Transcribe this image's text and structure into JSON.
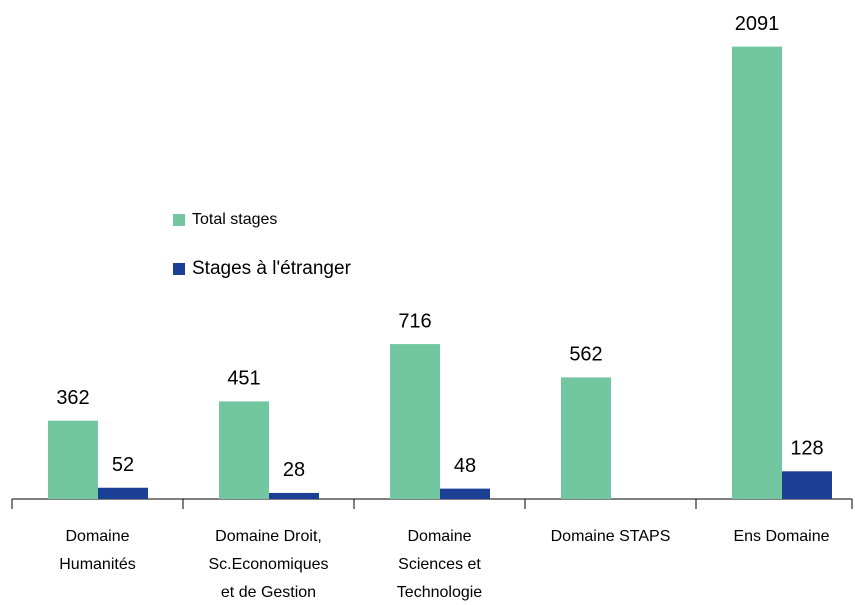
{
  "chart_data": {
    "type": "bar",
    "categories": [
      "Domaine\nHumanités",
      "Domaine Droit,\nSc.Economiques\net de Gestion",
      "Domaine\nSciences et\nTechnologie",
      "Domaine STAPS",
      "Ens Domaine"
    ],
    "series": [
      {
        "name": "Total stages",
        "color": "#72c6a0",
        "values": [
          362,
          451,
          716,
          562,
          2091
        ]
      },
      {
        "name": "Stages à l'étranger",
        "color": "#1a3f94",
        "values": [
          52,
          28,
          48,
          null,
          128
        ]
      }
    ],
    "ylim": [
      0,
      2200
    ],
    "legend": "left"
  }
}
